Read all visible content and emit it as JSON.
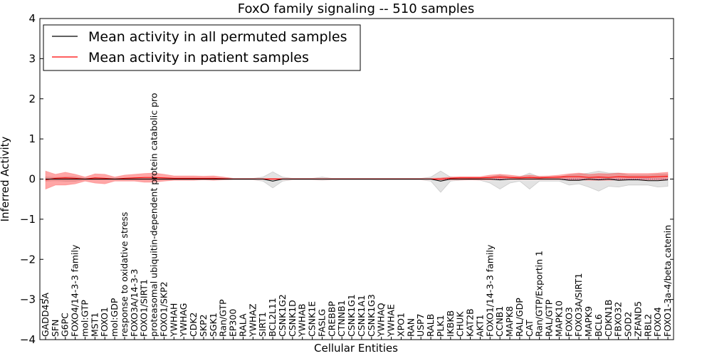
{
  "chart_data": {
    "type": "line",
    "title": "FoxO family signaling -- 510 samples",
    "xlabel": "Cellular Entities",
    "ylabel": "Inferred Activity",
    "ylim": [
      -4,
      4
    ],
    "yticks": [
      -4,
      -3,
      -2,
      -1,
      0,
      1,
      2,
      3,
      4
    ],
    "ytick_labels": [
      "−4",
      "−3",
      "−2",
      "−1",
      "0",
      "1",
      "2",
      "3",
      "4"
    ],
    "legend_position": "top-left",
    "categories": [
      "GADD45A",
      "SFN",
      "G6PC",
      "FOXO4/14-3-3 family",
      "mol:GTP",
      "MST1",
      "FOXO1",
      "mol:GDP",
      "response to oxidative stress",
      "FOXO3A/14-3-3",
      "FOXO1/SIRT1",
      "proteasomal ubiquitin-dependent protein catabolic pro",
      "FOXO1/SKP2",
      "YWHAH",
      "YWHAG",
      "CDK2",
      "SKP2",
      "SGK1",
      "Ran/GTP",
      "EP300",
      "RALA",
      "YWHAZ",
      "SIRT1",
      "BCL2L11",
      "CSNK1G2",
      "CSNK1D",
      "YWHAB",
      "CSNK1E",
      "FASLG",
      "CREBBP",
      "CTNNB1",
      "CSNK1G1",
      "CSNK1A1",
      "CSNK1G3",
      "YWHAQ",
      "YWHAE",
      "XPO1",
      "RAN",
      "USP7",
      "RALB",
      "PLK1",
      "IKBKB",
      "CHUK",
      "KAT2B",
      "AKT1",
      "FOXO1/14-3-3 family",
      "CCNB1",
      "MAPK8",
      "RAL/GDP",
      "CAT",
      "Ran/GTP/Exportin 1",
      "RAL/GTP",
      "MAPK10",
      "FOXO3",
      "FOXO3A/SIRT1",
      "MAPK9",
      "BCL6",
      "CDKN1B",
      "FBXO32",
      "SOD2",
      "ZFAND5",
      "RBL2",
      "FOXO4",
      "FOXO1-3a-4/beta catenin"
    ],
    "series": [
      {
        "name": "Mean activity in all permuted samples",
        "color": "#000000",
        "values": [
          0.0,
          0.0,
          0.0,
          0.0,
          0.0,
          0.0,
          0.0,
          0.0,
          0.0,
          0.0,
          0.0,
          0.0,
          0.0,
          0.0,
          0.0,
          0.0,
          0.0,
          0.0,
          0.0,
          0.0,
          0.0,
          0.0,
          0.0,
          -0.05,
          0.0,
          0.0,
          0.0,
          0.0,
          0.0,
          0.0,
          0.0,
          0.0,
          0.0,
          0.0,
          0.0,
          0.0,
          0.0,
          0.0,
          0.0,
          0.0,
          -0.05,
          0.0,
          0.0,
          0.0,
          0.0,
          0.0,
          -0.02,
          0.0,
          0.0,
          0.0,
          0.0,
          0.0,
          0.0,
          -0.03,
          -0.03,
          0.0,
          -0.02,
          0.0,
          -0.03,
          -0.02,
          -0.02,
          -0.04,
          -0.04,
          -0.02
        ],
        "band_low": [
          -0.05,
          -0.04,
          -0.05,
          -0.05,
          -0.02,
          -0.02,
          -0.02,
          -0.02,
          -0.02,
          -0.02,
          -0.02,
          -0.02,
          -0.02,
          -0.02,
          -0.02,
          -0.02,
          -0.02,
          -0.02,
          -0.02,
          -0.02,
          -0.02,
          -0.02,
          -0.05,
          -0.22,
          -0.05,
          -0.02,
          -0.02,
          -0.02,
          -0.03,
          -0.02,
          -0.02,
          -0.02,
          -0.02,
          -0.02,
          -0.02,
          -0.02,
          -0.02,
          -0.02,
          -0.02,
          -0.05,
          -0.33,
          -0.05,
          -0.03,
          -0.02,
          -0.03,
          -0.1,
          -0.25,
          -0.1,
          -0.05,
          -0.25,
          -0.05,
          -0.05,
          -0.05,
          -0.15,
          -0.12,
          -0.2,
          -0.3,
          -0.18,
          -0.2,
          -0.15,
          -0.15,
          -0.15,
          -0.2,
          -0.18
        ],
        "band_high": [
          0.05,
          0.04,
          0.05,
          0.05,
          0.02,
          0.02,
          0.02,
          0.02,
          0.02,
          0.02,
          0.02,
          0.02,
          0.02,
          0.02,
          0.02,
          0.02,
          0.02,
          0.02,
          0.02,
          0.02,
          0.02,
          0.02,
          0.05,
          0.18,
          0.05,
          0.02,
          0.02,
          0.02,
          0.05,
          0.02,
          0.02,
          0.02,
          0.02,
          0.02,
          0.02,
          0.02,
          0.02,
          0.02,
          0.02,
          0.05,
          0.2,
          0.05,
          0.03,
          0.02,
          0.03,
          0.05,
          0.1,
          0.05,
          0.05,
          0.15,
          0.05,
          0.05,
          0.05,
          0.1,
          0.12,
          0.15,
          0.2,
          0.15,
          0.15,
          0.1,
          0.1,
          0.1,
          0.12,
          0.12
        ]
      },
      {
        "name": "Mean activity in patient samples",
        "color": "#ff0000",
        "values": [
          -0.02,
          0.02,
          0.03,
          0.02,
          0.0,
          0.03,
          0.02,
          0.0,
          0.02,
          0.03,
          0.04,
          0.04,
          0.03,
          0.02,
          0.02,
          0.02,
          0.02,
          0.02,
          0.01,
          0.0,
          0.0,
          0.0,
          0.0,
          0.0,
          0.0,
          0.0,
          0.0,
          0.0,
          0.0,
          0.0,
          0.0,
          0.0,
          0.0,
          0.0,
          0.0,
          0.0,
          0.0,
          0.0,
          0.0,
          0.0,
          0.0,
          0.02,
          0.03,
          0.03,
          0.03,
          0.04,
          0.05,
          0.04,
          0.03,
          0.04,
          0.03,
          0.04,
          0.05,
          0.06,
          0.06,
          0.04,
          0.05,
          0.04,
          0.06,
          0.05,
          0.05,
          0.05,
          0.06,
          0.07
        ],
        "band_low": [
          -0.25,
          -0.15,
          -0.15,
          -0.12,
          -0.05,
          -0.1,
          -0.12,
          -0.05,
          -0.05,
          -0.05,
          -0.08,
          -0.08,
          -0.05,
          -0.03,
          -0.03,
          -0.03,
          -0.02,
          -0.03,
          -0.02,
          -0.01,
          -0.01,
          -0.01,
          -0.01,
          -0.01,
          -0.01,
          -0.01,
          -0.01,
          -0.01,
          -0.01,
          -0.01,
          -0.01,
          -0.01,
          -0.01,
          -0.01,
          -0.01,
          -0.01,
          -0.01,
          -0.01,
          -0.01,
          -0.01,
          -0.02,
          -0.02,
          -0.02,
          -0.02,
          -0.02,
          -0.02,
          -0.01,
          -0.01,
          -0.01,
          -0.01,
          -0.01,
          -0.01,
          -0.01,
          -0.02,
          -0.02,
          -0.03,
          -0.03,
          -0.03,
          -0.02,
          -0.02,
          -0.02,
          -0.02,
          -0.02,
          -0.02
        ],
        "band_high": [
          0.2,
          0.12,
          0.17,
          0.12,
          0.05,
          0.13,
          0.12,
          0.05,
          0.1,
          0.12,
          0.14,
          0.15,
          0.12,
          0.08,
          0.08,
          0.08,
          0.07,
          0.08,
          0.05,
          0.02,
          0.02,
          0.02,
          0.02,
          0.02,
          0.02,
          0.02,
          0.02,
          0.02,
          0.02,
          0.02,
          0.02,
          0.02,
          0.02,
          0.02,
          0.02,
          0.02,
          0.02,
          0.02,
          0.02,
          0.02,
          0.03,
          0.05,
          0.06,
          0.06,
          0.06,
          0.1,
          0.12,
          0.1,
          0.07,
          0.1,
          0.07,
          0.08,
          0.1,
          0.13,
          0.15,
          0.12,
          0.14,
          0.13,
          0.15,
          0.14,
          0.14,
          0.14,
          0.15,
          0.17
        ]
      }
    ]
  }
}
